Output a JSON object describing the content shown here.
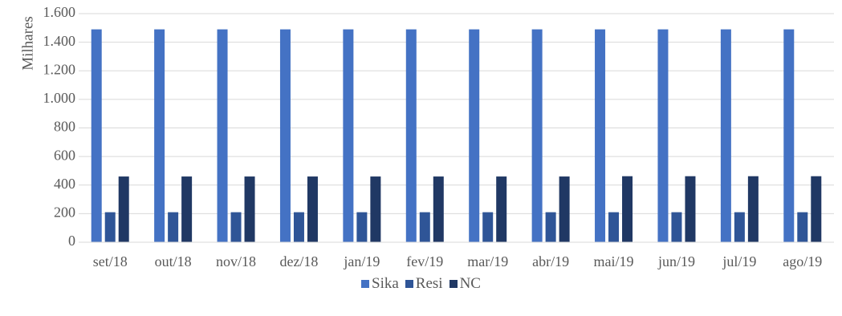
{
  "chart_data": {
    "type": "bar",
    "ylabel": "Milhares",
    "xlabel": "",
    "ylim": [
      0,
      1600
    ],
    "yticks": [
      0,
      200,
      400,
      600,
      800,
      1000,
      1200,
      1400,
      1600
    ],
    "ytick_labels": [
      "0",
      "200",
      "400",
      "600",
      "800",
      "1.000",
      "1.200",
      "1.400",
      "1.600"
    ],
    "grid": true,
    "legend_position": "bottom",
    "categories": [
      "set/18",
      "out/18",
      "nov/18",
      "dez/18",
      "jan/19",
      "fev/19",
      "mar/19",
      "abr/19",
      "mai/19",
      "jun/19",
      "jul/19",
      "ago/19"
    ],
    "series": [
      {
        "name": "Sika",
        "color": "#4472C4",
        "values": [
          1490,
          1490,
          1490,
          1490,
          1490,
          1490,
          1490,
          1490,
          1490,
          1490,
          1490,
          1490
        ]
      },
      {
        "name": "Resi",
        "color": "#2F5597",
        "values": [
          210,
          210,
          210,
          210,
          210,
          210,
          210,
          210,
          210,
          210,
          210,
          210
        ]
      },
      {
        "name": "NC",
        "color": "#203864",
        "values": [
          460,
          460,
          460,
          460,
          460,
          460,
          460,
          460,
          462,
          462,
          462,
          462
        ]
      }
    ]
  }
}
